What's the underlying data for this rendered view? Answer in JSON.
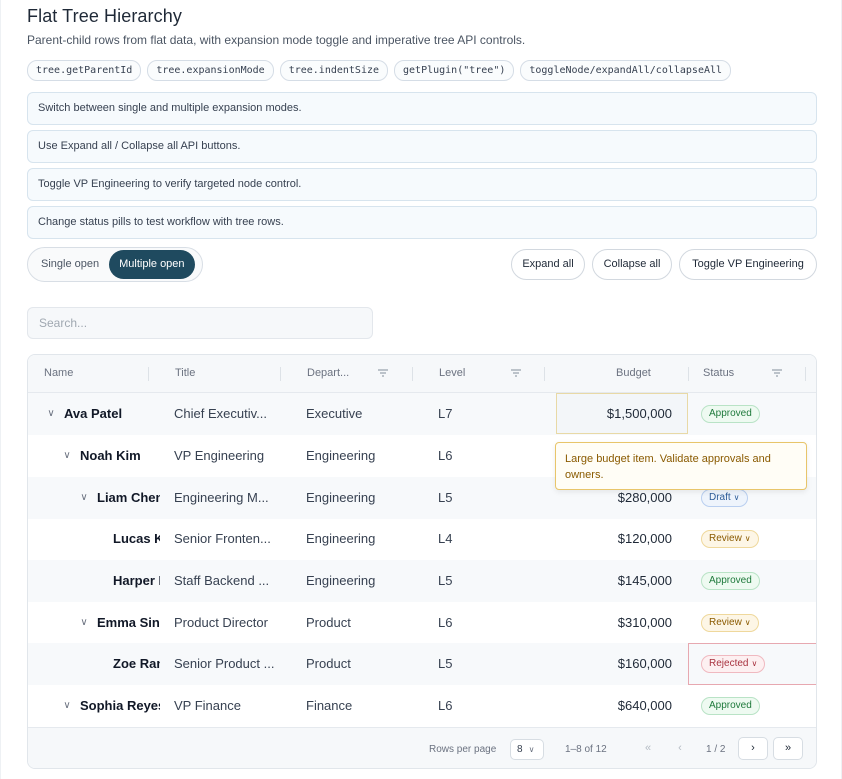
{
  "header": {
    "title": "Flat Tree Hierarchy",
    "subtitle": "Parent-child rows from flat data, with expansion mode toggle and imperative tree API controls."
  },
  "chips": [
    "tree.getParentId",
    "tree.expansionMode",
    "tree.indentSize",
    "getPlugin(\"tree\")",
    "toggleNode/expandAll/collapseAll"
  ],
  "notes": [
    "Switch between single and multiple expansion modes.",
    "Use Expand all / Collapse all API buttons.",
    "Toggle VP Engineering to verify targeted node control.",
    "Change status pills to test workflow with tree rows."
  ],
  "mode_toggle": {
    "single_label": "Single open",
    "multiple_label": "Multiple open",
    "selected": "Multiple open"
  },
  "actions": {
    "expand_all": "Expand all",
    "collapse_all": "Collapse all",
    "toggle_vp": "Toggle VP Engineering"
  },
  "search": {
    "placeholder": "Search..."
  },
  "columns": {
    "name": "Name",
    "title": "Title",
    "department": "Depart...",
    "level": "Level",
    "budget": "Budget",
    "status": "Status"
  },
  "rows": [
    {
      "name": "Ava Patel",
      "title": "Chief Executiv...",
      "department": "Executive",
      "level": "L7",
      "budget": "$1,500,000",
      "status": "Approved"
    },
    {
      "name": "Noah Kim",
      "title": "VP Engineering",
      "department": "Engineering",
      "level": "L6",
      "budget": "",
      "status": ""
    },
    {
      "name": "Liam Chen",
      "title": "Engineering M...",
      "department": "Engineering",
      "level": "L5",
      "budget": "$280,000",
      "status": "Draft"
    },
    {
      "name": "Lucas K",
      "title": "Senior Fronten...",
      "department": "Engineering",
      "level": "L4",
      "budget": "$120,000",
      "status": "Review"
    },
    {
      "name": "Harper I",
      "title": "Staff Backend ...",
      "department": "Engineering",
      "level": "L5",
      "budget": "$145,000",
      "status": "Approved"
    },
    {
      "name": "Emma Sing",
      "title": "Product Director",
      "department": "Product",
      "level": "L6",
      "budget": "$310,000",
      "status": "Review"
    },
    {
      "name": "Zoe Ran",
      "title": "Senior Product ...",
      "department": "Product",
      "level": "L5",
      "budget": "$160,000",
      "status": "Rejected"
    },
    {
      "name": "Sophia Reyes",
      "title": "VP Finance",
      "department": "Finance",
      "level": "L6",
      "budget": "$640,000",
      "status": "Approved"
    }
  ],
  "tooltip": "Large budget item. Validate approvals and owners.",
  "pagination": {
    "rows_per_page_label": "Rows per page",
    "rows_per_page": "8",
    "range": "1–8 of 12",
    "page": "1 / 2"
  },
  "colors": {
    "accent": "#1f4a5f",
    "approved": "#1f7a3c",
    "draft": "#2d5c98",
    "review": "#8a5a00",
    "rejected": "#a8323f"
  }
}
